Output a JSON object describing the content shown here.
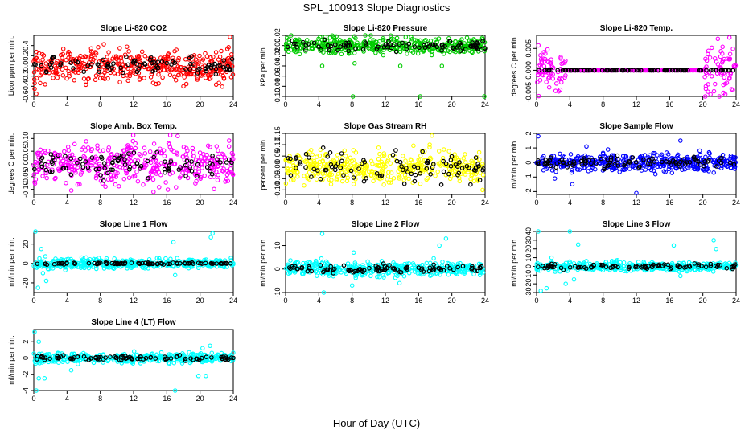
{
  "figure": {
    "title": "SPL_100913  Slope Diagnostics",
    "xlabel": "Hour of Day (UTC)"
  },
  "chart_data": [
    {
      "type": "scatter",
      "title": "Slope Li-820 CO2",
      "ylabel": "Licor ppm per min.",
      "color": "#ff0000",
      "xlim": [
        0,
        24
      ],
      "ylim": [
        -0.6,
        0.6
      ],
      "yticks": [
        "-0.6",
        "-0.4",
        "-0.2",
        "0.0",
        "0.2",
        "0.4"
      ],
      "ytick_values": [
        -0.6,
        -0.4,
        -0.2,
        0.0,
        0.2,
        0.4
      ],
      "xticks": [
        "0",
        "4",
        "8",
        "12",
        "16",
        "20",
        "24"
      ],
      "spread": 0.16,
      "black_spread": 0.08,
      "outliers": [
        [
          23.6,
          0.57
        ],
        [
          0.3,
          -0.55
        ],
        [
          0.1,
          -0.45
        ]
      ]
    },
    {
      "type": "scatter",
      "title": "Slope Li-820 Pressure",
      "ylabel": "kPa per min.",
      "color": "#00cc00",
      "xlim": [
        0,
        24
      ],
      "ylim": [
        -0.1,
        0.02
      ],
      "yticks": [
        "-0.10",
        "-0.08",
        "-0.06",
        "-0.04",
        "-0.02",
        "0.00",
        "0.02"
      ],
      "ytick_values": [
        -0.1,
        -0.08,
        -0.06,
        -0.04,
        -0.02,
        0.0,
        0.02
      ],
      "xticks": [
        "0",
        "4",
        "8",
        "12",
        "16",
        "20",
        "24"
      ],
      "spread": 0.008,
      "black_spread": 0.006,
      "outliers": [
        [
          8.1,
          -0.1
        ],
        [
          16.2,
          -0.1
        ],
        [
          23.9,
          -0.1
        ],
        [
          4.4,
          -0.04
        ],
        [
          8.3,
          -0.035
        ],
        [
          13.8,
          -0.04
        ],
        [
          18.8,
          -0.04
        ]
      ]
    },
    {
      "type": "scatter",
      "title": "Slope Li-820 Temp.",
      "ylabel": "degrees C per min.",
      "color": "#ff00ff",
      "xlim": [
        0,
        24
      ],
      "ylim": [
        -0.006,
        0.008
      ],
      "yticks": [
        "-0.005",
        "0.000",
        "0.005"
      ],
      "ytick_values": [
        -0.005,
        0.0,
        0.005
      ],
      "xticks": [
        "0",
        "4",
        "8",
        "12",
        "16",
        "20",
        "24"
      ],
      "spread": 0.0,
      "black_spread": 0.0,
      "noisy_ranges": [
        [
          0,
          3.5,
          0.0025
        ],
        [
          20.2,
          24,
          0.003
        ]
      ],
      "outliers": [
        [
          23.2,
          0.0075
        ],
        [
          21.8,
          0.0072
        ],
        [
          22.7,
          -0.0055
        ],
        [
          23.6,
          -0.0045
        ]
      ]
    },
    {
      "type": "scatter",
      "title": "Slope Amb. Box Temp.",
      "ylabel": "degrees C per min.",
      "color": "#ff00ff",
      "xlim": [
        0,
        24
      ],
      "ylim": [
        -0.12,
        0.12
      ],
      "yticks": [
        "-0.10",
        "-0.05",
        "0.00",
        "0.05",
        "0.10"
      ],
      "ytick_values": [
        -0.1,
        -0.05,
        0.0,
        0.05,
        0.1
      ],
      "xticks": [
        "0",
        "4",
        "8",
        "12",
        "16",
        "20",
        "24"
      ],
      "spread": 0.04,
      "black_spread": 0.025,
      "outliers": [
        [
          17.3,
          0.11
        ],
        [
          14.4,
          -0.11
        ]
      ]
    },
    {
      "type": "scatter",
      "title": "Slope Gas Stream RH",
      "ylabel": "percent per min.",
      "color": "#ffff00",
      "xlim": [
        0,
        24
      ],
      "ylim": [
        -0.12,
        0.15
      ],
      "yticks": [
        "-0.10",
        "-0.05",
        "0.00",
        "0.05",
        "0.10",
        "0.15"
      ],
      "ytick_values": [
        -0.1,
        -0.05,
        0.0,
        0.05,
        0.1,
        0.15
      ],
      "xticks": [
        "0",
        "4",
        "8",
        "12",
        "16",
        "20",
        "24"
      ],
      "spread": 0.035,
      "black_spread": 0.035,
      "outliers": [
        [
          17.6,
          0.14
        ],
        [
          23.7,
          -0.1
        ]
      ]
    },
    {
      "type": "scatter",
      "title": "Slope Sample Flow",
      "ylabel": "ml/min per min.",
      "color": "#0000ff",
      "xlim": [
        0,
        24
      ],
      "ylim": [
        -2.2,
        2.0
      ],
      "yticks": [
        "-2",
        "-1",
        "0",
        "1",
        "2"
      ],
      "ytick_values": [
        -2,
        -1,
        0,
        1,
        2
      ],
      "xticks": [
        "0",
        "4",
        "8",
        "12",
        "16",
        "20",
        "24"
      ],
      "spread": 0.3,
      "black_spread": 0.2,
      "outliers": [
        [
          0.2,
          1.8
        ],
        [
          12.0,
          -2.1
        ],
        [
          2.2,
          -1.1
        ],
        [
          17.3,
          1.5
        ],
        [
          4.3,
          -1.5
        ],
        [
          6.0,
          1.1
        ]
      ]
    },
    {
      "type": "scatter",
      "title": "Slope Line 1 Flow",
      "ylabel": "ml/min per min.",
      "color": "#00ffff",
      "xlim": [
        0,
        24
      ],
      "ylim": [
        -30,
        33
      ],
      "yticks": [
        "-20",
        "0",
        "20"
      ],
      "ytick_values": [
        -20,
        0,
        20
      ],
      "xticks": [
        "0",
        "4",
        "8",
        "12",
        "16",
        "20",
        "24"
      ],
      "spread": 2.5,
      "black_spread": 0.5,
      "outliers": [
        [
          0.2,
          33
        ],
        [
          21.5,
          31
        ],
        [
          21.3,
          27
        ],
        [
          1.5,
          -18
        ],
        [
          0.5,
          -25
        ],
        [
          1.1,
          -10
        ],
        [
          17.0,
          -12
        ],
        [
          16.8,
          22
        ],
        [
          0.9,
          15
        ]
      ]
    },
    {
      "type": "scatter",
      "title": "Slope Line 2 Flow",
      "ylabel": "ml/min per min.",
      "color": "#00ffff",
      "xlim": [
        0,
        24
      ],
      "ylim": [
        -10,
        16
      ],
      "yticks": [
        "-10",
        "0",
        "10"
      ],
      "ytick_values": [
        -10,
        0,
        10
      ],
      "xticks": [
        "0",
        "4",
        "8",
        "12",
        "16",
        "20",
        "24"
      ],
      "spread": 1.5,
      "black_spread": 1.0,
      "outliers": [
        [
          4.4,
          15
        ],
        [
          4.6,
          -10
        ],
        [
          19.3,
          13
        ],
        [
          18.5,
          10
        ],
        [
          8.2,
          7
        ],
        [
          8.0,
          -7
        ],
        [
          13.7,
          -6
        ],
        [
          4.3,
          4.5
        ]
      ]
    },
    {
      "type": "scatter",
      "title": "Slope Line 3 Flow",
      "ylabel": "ml/min per min.",
      "color": "#00ffff",
      "xlim": [
        0,
        24
      ],
      "ylim": [
        -30,
        40
      ],
      "yticks": [
        "-30",
        "-20",
        "-10",
        "0",
        "10",
        "20",
        "30",
        "40"
      ],
      "ytick_values": [
        -30,
        -20,
        -10,
        0,
        10,
        20,
        30,
        40
      ],
      "xticks": [
        "0",
        "4",
        "8",
        "12",
        "16",
        "20",
        "24"
      ],
      "spread": 2.5,
      "black_spread": 1.5,
      "outliers": [
        [
          0.2,
          40
        ],
        [
          4.0,
          40
        ],
        [
          0.5,
          -28
        ],
        [
          1.2,
          -25
        ],
        [
          1.8,
          10
        ],
        [
          3.5,
          -20
        ],
        [
          4.5,
          -15
        ],
        [
          5.0,
          25
        ],
        [
          21.3,
          30
        ],
        [
          21.6,
          20
        ],
        [
          16.5,
          24
        ],
        [
          17.3,
          -11
        ]
      ]
    },
    {
      "type": "scatter",
      "title": "Slope Line 4 (LT) Flow",
      "ylabel": "ml/min per min.",
      "color": "#00ffff",
      "xlim": [
        0,
        24
      ],
      "ylim": [
        -4,
        3.5
      ],
      "yticks": [
        "-4",
        "-2",
        "0",
        "2"
      ],
      "ytick_values": [
        -4,
        -2,
        0,
        2
      ],
      "xticks": [
        "0",
        "4",
        "8",
        "12",
        "16",
        "20",
        "24"
      ],
      "spread": 0.3,
      "black_spread": 0.15,
      "outliers": [
        [
          0.1,
          3.2
        ],
        [
          0.3,
          -4
        ],
        [
          17.0,
          -4
        ],
        [
          0.6,
          -2.5
        ],
        [
          1.3,
          -2.5
        ],
        [
          19.8,
          -2.2
        ],
        [
          20.7,
          -2.2
        ],
        [
          20.3,
          1.2
        ],
        [
          21.2,
          1.5
        ],
        [
          4.5,
          -1.5
        ],
        [
          0.6,
          2.0
        ]
      ]
    }
  ]
}
